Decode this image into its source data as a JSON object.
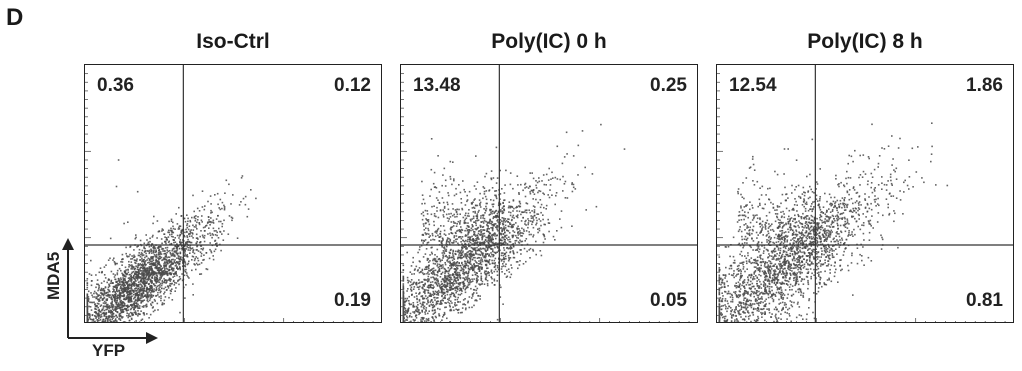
{
  "panel_label": "D",
  "chart_data": [
    {
      "type": "scatter",
      "title": "Iso-Ctrl",
      "xlabel": "YFP",
      "ylabel": "MDA5",
      "quadrants": {
        "upper_left": "0.36",
        "upper_right": "0.12",
        "lower_right": "0.19"
      },
      "population": {
        "cx": 0.18,
        "cy": 0.16,
        "spread": 0.12,
        "upper_fraction": 0.004
      }
    },
    {
      "type": "scatter",
      "title": "Poly(IC) 0 h",
      "xlabel": "YFP",
      "ylabel": "MDA5",
      "quadrants": {
        "upper_left": "13.48",
        "upper_right": "0.25",
        "lower_right": "0.05"
      },
      "population": {
        "cx": 0.2,
        "cy": 0.22,
        "spread": 0.15,
        "upper_fraction": 0.135
      }
    },
    {
      "type": "scatter",
      "title": "Poly(IC) 8 h",
      "xlabel": "YFP",
      "ylabel": "MDA5",
      "quadrants": {
        "upper_left": "12.54",
        "upper_right": "1.86",
        "lower_right": "0.81"
      },
      "population": {
        "cx": 0.22,
        "cy": 0.22,
        "spread": 0.17,
        "upper_fraction": 0.125
      }
    }
  ]
}
